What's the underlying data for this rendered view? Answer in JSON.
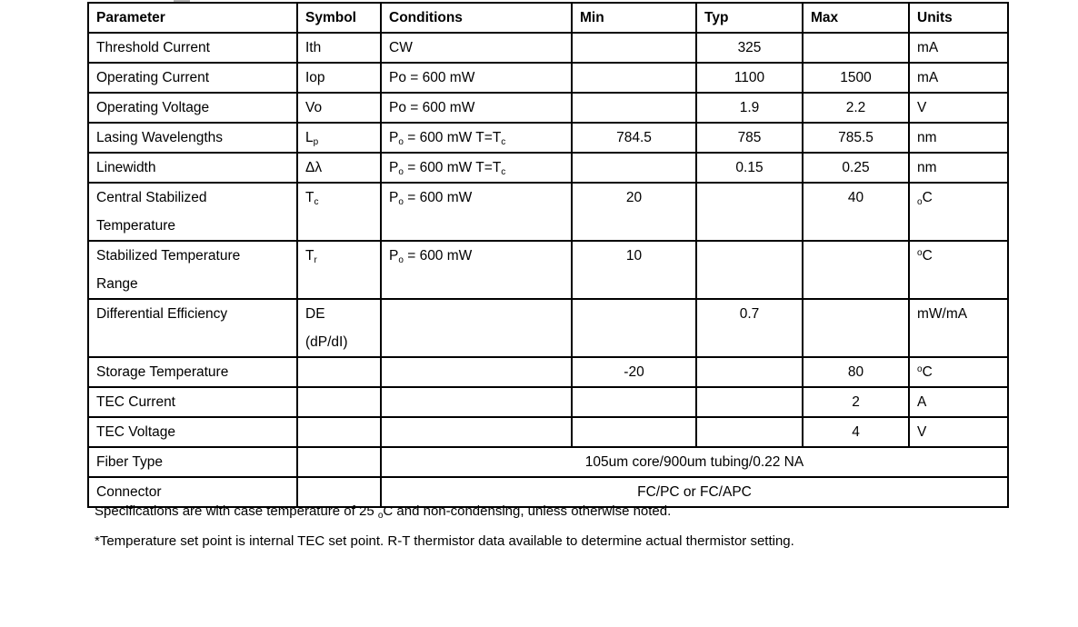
{
  "table": {
    "headers": {
      "parameter": "Parameter",
      "symbol": "Symbol",
      "conditions": "Conditions",
      "min": "Min",
      "typ": "Typ",
      "max": "Max",
      "units": "Units"
    },
    "rows": [
      {
        "parameter": "Threshold Current",
        "symbol": "Ith",
        "conditions": "CW",
        "min": "",
        "typ": "325",
        "max": "",
        "units": "mA"
      },
      {
        "parameter": "Operating Current",
        "symbol": "Iop",
        "conditions": "Po = 600 mW",
        "min": "",
        "typ": "1100",
        "max": "1500",
        "units": "mA"
      },
      {
        "parameter": "Operating Voltage",
        "symbol": "Vo",
        "conditions": "Po = 600 mW",
        "min": "",
        "typ": "1.9",
        "max": "2.2",
        "units": "V"
      },
      {
        "parameter": "Lasing Wavelengths",
        "symbol": "L~p~",
        "conditions": "P~o~ = 600 mW T=T~c~",
        "min": "784.5",
        "typ": "785",
        "max": "785.5",
        "units": "nm"
      },
      {
        "parameter": "Linewidth",
        "symbol": "Δλ",
        "conditions": "P~o~ = 600 mW T=T~c~",
        "min": "",
        "typ": "0.15",
        "max": "0.25",
        "units": "nm"
      },
      {
        "parameter": "Central Stabilized\nTemperature",
        "symbol": "T~c~",
        "conditions": "P~o~ = 600 mW",
        "min": "20",
        "typ": "",
        "max": "40",
        "units": "~o~C"
      },
      {
        "parameter": "Stabilized Temperature\nRange",
        "symbol": "T~r~",
        "conditions": "P~o~ = 600 mW",
        "min": "10",
        "typ": "",
        "max": "",
        "units": "^o^C"
      },
      {
        "parameter": "Differential Efficiency",
        "symbol": "DE\n(dP/dI)",
        "conditions": "",
        "min": "",
        "typ": "0.7",
        "max": "",
        "units": "mW/mA"
      },
      {
        "parameter": "Storage Temperature",
        "symbol": "",
        "conditions": "",
        "min": "-20",
        "typ": "",
        "max": "80",
        "units": "^o^C"
      },
      {
        "parameter": "TEC Current",
        "symbol": "",
        "conditions": "",
        "min": "",
        "typ": "",
        "max": "2",
        "units": "A"
      },
      {
        "parameter": "TEC Voltage",
        "symbol": "",
        "conditions": "",
        "min": "",
        "typ": "",
        "max": "4",
        "units": "V"
      }
    ],
    "merged_rows": [
      {
        "parameter": "Fiber Type",
        "symbol": "",
        "value": "105um core/900um tubing/0.22 NA"
      },
      {
        "parameter": "Connector",
        "symbol": "",
        "value": "FC/PC or FC/APC"
      }
    ]
  },
  "footnotes": [
    "Specifications are with case temperature of 25 ~o~C and non-condensing, unless otherwise noted.",
    "*Temperature set point is internal TEC set point. R-T thermistor data available to determine actual thermistor setting."
  ]
}
